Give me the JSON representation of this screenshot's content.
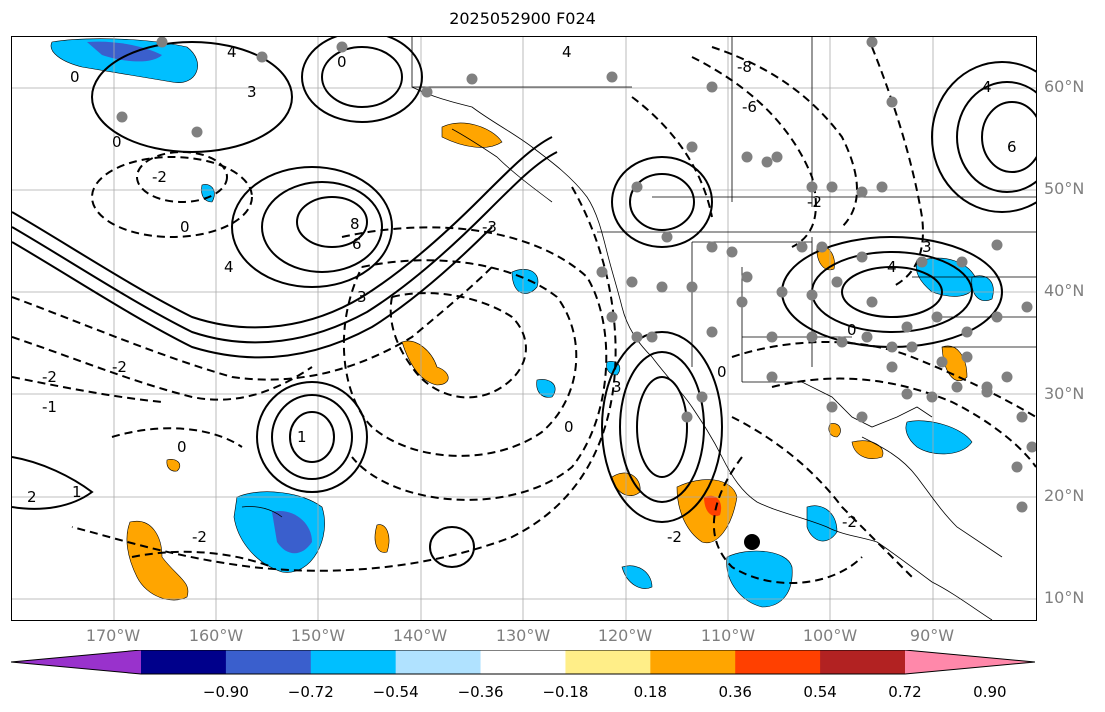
{
  "title": "2025052900 F024",
  "map": {
    "projection": "equirectangular",
    "lon_range": [
      -180,
      -80
    ],
    "lat_range": [
      8,
      65
    ],
    "longitude_labels": [
      {
        "lon": -170,
        "text": "170°W"
      },
      {
        "lon": -160,
        "text": "160°W"
      },
      {
        "lon": -150,
        "text": "150°W"
      },
      {
        "lon": -140,
        "text": "140°W"
      },
      {
        "lon": -130,
        "text": "130°W"
      },
      {
        "lon": -120,
        "text": "120°W"
      },
      {
        "lon": -110,
        "text": "110°W"
      },
      {
        "lon": -100,
        "text": "100°W"
      },
      {
        "lon": -90,
        "text": "90°W"
      }
    ],
    "latitude_labels": [
      {
        "lat": 60,
        "text": "60°N"
      },
      {
        "lat": 50,
        "text": "50°N"
      },
      {
        "lat": 40,
        "text": "40°N"
      },
      {
        "lat": 30,
        "text": "30°N"
      },
      {
        "lat": 20,
        "text": "20°N"
      },
      {
        "lat": 10,
        "text": "10°N"
      }
    ],
    "label_color": "#7f7f7f",
    "gridlines": true,
    "contour_labels": [
      "0",
      "2",
      "4",
      "6",
      "8",
      "-2",
      "-1",
      "-3",
      "-6",
      "-8",
      "1",
      "3"
    ]
  },
  "colorbar": {
    "ticks": [
      "−0.90",
      "−0.72",
      "−0.54",
      "−0.36",
      "−0.18",
      "0.18",
      "0.36",
      "0.54",
      "0.72",
      "0.90"
    ],
    "colors": [
      "#9932cc",
      "#00008b",
      "#3a5fcd",
      "#00bfff",
      "#b0e2ff",
      "#ffffff",
      "#ffee88",
      "#ffa500",
      "#ff4000",
      "#b22222",
      "#ff88aa"
    ],
    "extend": "both"
  },
  "markers": {
    "dot_color": "#808080",
    "big_dot_color": "#000000"
  }
}
